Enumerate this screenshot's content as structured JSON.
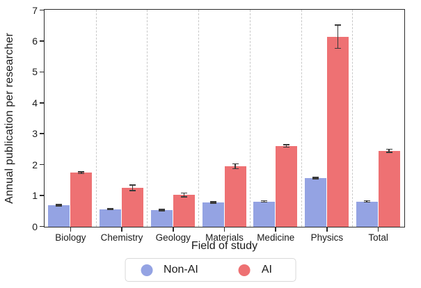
{
  "chart_data": {
    "type": "bar",
    "title": "",
    "xlabel": "Field of study",
    "ylabel": "Annual publication per researcher",
    "ylim": [
      0,
      7
    ],
    "y_ticks": [
      0,
      1,
      2,
      3,
      4,
      5,
      6,
      7
    ],
    "categories": [
      "Biology",
      "Chemistry",
      "Geology",
      "Materials",
      "Medicine",
      "Physics",
      "Total"
    ],
    "series": [
      {
        "name": "Non-AI",
        "color": "#94a3e3",
        "values": [
          0.7,
          0.57,
          0.54,
          0.79,
          0.82,
          1.58,
          0.82
        ],
        "errors": [
          0.02,
          0.02,
          0.02,
          0.02,
          0.02,
          0.02,
          0.02
        ]
      },
      {
        "name": "AI",
        "color": "#ee7173",
        "values": [
          1.75,
          1.26,
          1.03,
          1.96,
          2.62,
          6.15,
          2.46
        ],
        "errors": [
          0.03,
          0.09,
          0.06,
          0.08,
          0.04,
          0.38,
          0.05
        ]
      }
    ],
    "error_bar_color": "#3a3a3a",
    "grid": {
      "vertical_dashed_separators": true,
      "color": "#c9c9c9"
    },
    "legend_position": "bottom-center",
    "spine_color": "#2b2b2b",
    "background": "#ffffff"
  }
}
